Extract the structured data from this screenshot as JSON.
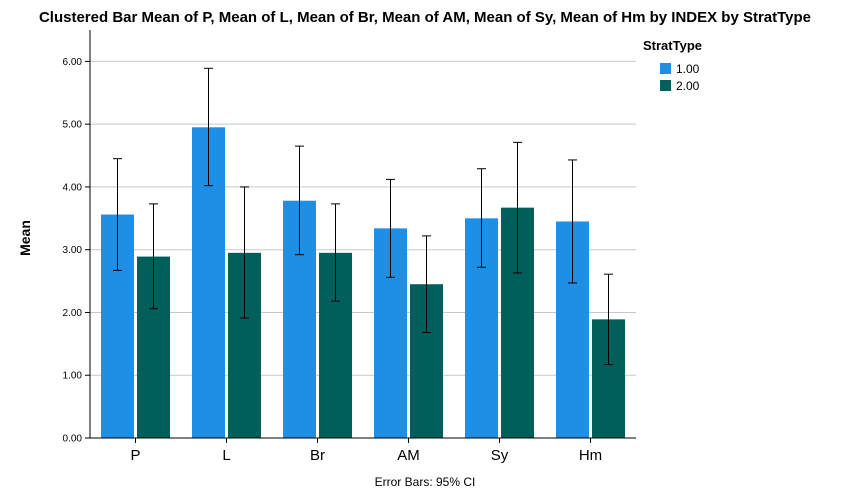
{
  "chart_data": {
    "type": "bar",
    "title": "Clustered Bar Mean of P, Mean of L, Mean of Br, Mean of AM, Mean of Sy, Mean of Hm by INDEX by StratType",
    "xlabel": "",
    "ylabel": "Mean",
    "ylim": [
      0,
      6.5
    ],
    "yticks": [
      0,
      1,
      2,
      3,
      4,
      5,
      6
    ],
    "ytick_labels": [
      "0.00",
      "1.00",
      "2.00",
      "3.00",
      "4.00",
      "5.00",
      "6.00"
    ],
    "grid": true,
    "legend": {
      "title": "StratType",
      "placement": "top-right"
    },
    "categories": [
      "P",
      "L",
      "Br",
      "AM",
      "Sy",
      "Hm"
    ],
    "series": [
      {
        "name": "1.00",
        "color": "#1f8fe6",
        "values": [
          3.56,
          4.95,
          3.78,
          3.34,
          3.5,
          3.45
        ],
        "ci_low": [
          2.67,
          4.02,
          2.92,
          2.56,
          2.72,
          2.47
        ],
        "ci_high": [
          4.45,
          5.89,
          4.65,
          4.12,
          4.29,
          4.43
        ]
      },
      {
        "name": "2.00",
        "color": "#005e5b",
        "values": [
          2.89,
          2.95,
          2.95,
          2.45,
          3.67,
          1.89
        ],
        "ci_low": [
          2.06,
          1.91,
          2.18,
          1.68,
          2.63,
          1.17
        ],
        "ci_high": [
          3.73,
          4.0,
          3.73,
          3.22,
          4.71,
          2.61
        ]
      }
    ],
    "footnote": "Error Bars: 95% CI"
  }
}
